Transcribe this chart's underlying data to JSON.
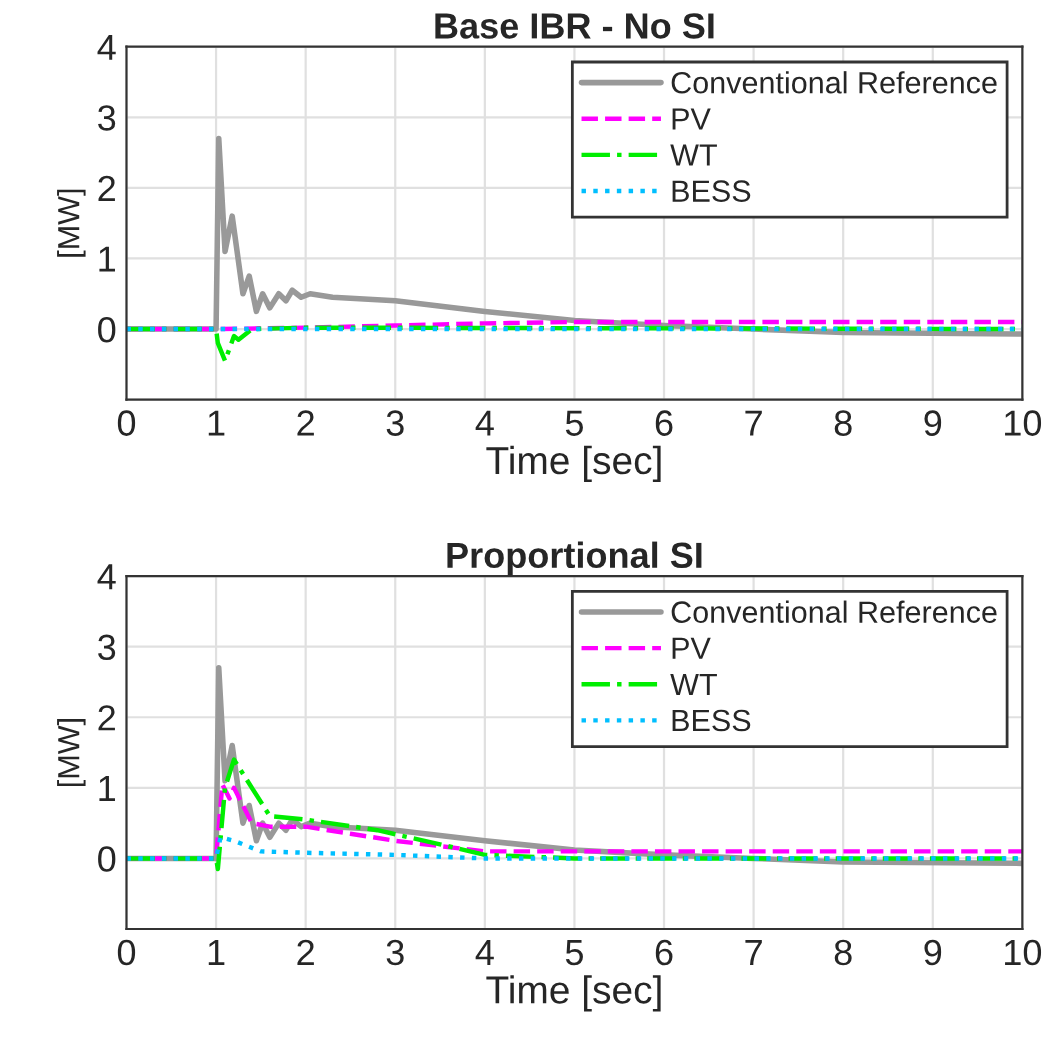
{
  "chart_data": [
    {
      "type": "line",
      "title": "Base IBR - No SI",
      "xlabel": "Time [sec]",
      "ylabel": "[MW]",
      "xlim": [
        0,
        10
      ],
      "xticks": [
        0,
        1,
        2,
        3,
        4,
        5,
        6,
        7,
        8,
        9,
        10
      ],
      "ylim": [
        -1,
        4
      ],
      "yticks": [
        {
          "value": -1,
          "label": null
        },
        0,
        1,
        2,
        3,
        4
      ],
      "grid": true,
      "legend": "top right",
      "series": [
        {
          "name": "Conventional Reference",
          "color": "#999999",
          "line_style": "solid",
          "x": [
            0,
            1,
            1.03,
            1.1,
            1.18,
            1.3,
            1.37,
            1.45,
            1.52,
            1.6,
            1.7,
            1.78,
            1.85,
            1.95,
            2.05,
            2.3,
            3,
            4,
            5,
            6,
            7,
            8,
            10
          ],
          "values": [
            0,
            0,
            2.7,
            1.1,
            1.6,
            0.5,
            0.75,
            0.25,
            0.5,
            0.3,
            0.5,
            0.4,
            0.55,
            0.45,
            0.5,
            0.45,
            0.4,
            0.25,
            0.12,
            0.05,
            0,
            -0.05,
            -0.07
          ]
        },
        {
          "name": "PV",
          "color": "#ff00ff",
          "line_style": "dashed",
          "x": [
            0,
            1,
            2,
            3,
            4,
            5,
            10
          ],
          "values": [
            0,
            0,
            0.02,
            0.05,
            0.08,
            0.1,
            0.1
          ]
        },
        {
          "name": "WT",
          "color": "#00ee00",
          "line_style": "dashdot",
          "x": [
            0,
            1,
            1.02,
            1.1,
            1.2,
            1.25,
            1.4,
            2,
            10
          ],
          "values": [
            0,
            0,
            -0.2,
            -0.45,
            -0.1,
            -0.15,
            0,
            0.02,
            0
          ]
        },
        {
          "name": "BESS",
          "color": "#00bfff",
          "line_style": "dotted",
          "x": [
            0,
            10
          ],
          "values": [
            0,
            0
          ]
        }
      ]
    },
    {
      "type": "line",
      "title": "Proportional SI",
      "xlabel": "Time [sec]",
      "ylabel": "[MW]",
      "xlim": [
        0,
        10
      ],
      "xticks": [
        0,
        1,
        2,
        3,
        4,
        5,
        6,
        7,
        8,
        9,
        10
      ],
      "ylim": [
        -1,
        4
      ],
      "yticks": [
        {
          "value": -1,
          "label": null
        },
        0,
        1,
        2,
        3,
        4
      ],
      "grid": true,
      "legend": "top right",
      "series": [
        {
          "name": "Conventional Reference",
          "color": "#999999",
          "line_style": "solid",
          "x": [
            0,
            1,
            1.03,
            1.1,
            1.18,
            1.3,
            1.37,
            1.45,
            1.52,
            1.6,
            1.7,
            1.78,
            1.85,
            1.95,
            2.05,
            2.3,
            3,
            4,
            5,
            6,
            7,
            8,
            10
          ],
          "values": [
            0,
            0,
            2.7,
            1.1,
            1.6,
            0.5,
            0.75,
            0.25,
            0.5,
            0.3,
            0.5,
            0.4,
            0.55,
            0.45,
            0.5,
            0.45,
            0.4,
            0.25,
            0.12,
            0.05,
            0,
            -0.05,
            -0.07
          ]
        },
        {
          "name": "PV",
          "color": "#ff00ff",
          "line_style": "dashed",
          "x": [
            0,
            1,
            1.07,
            1.15,
            1.2,
            1.4,
            1.6,
            2,
            2.5,
            3,
            4,
            10
          ],
          "values": [
            0,
            0,
            1.05,
            0.85,
            1.0,
            0.5,
            0.45,
            0.45,
            0.35,
            0.25,
            0.1,
            0.1
          ]
        },
        {
          "name": "WT",
          "color": "#00ee00",
          "line_style": "dashdot",
          "x": [
            0,
            1,
            1.02,
            1.1,
            1.2,
            1.35,
            1.6,
            2,
            2.8,
            3.5,
            4,
            5,
            10
          ],
          "values": [
            0,
            0,
            -0.15,
            1.0,
            1.4,
            1.1,
            0.6,
            0.55,
            0.4,
            0.2,
            0.05,
            0,
            0
          ]
        },
        {
          "name": "BESS",
          "color": "#00bfff",
          "line_style": "dotted",
          "x": [
            0,
            1,
            1.05,
            1.2,
            1.5,
            2,
            3,
            4,
            10
          ],
          "values": [
            0,
            0,
            0.3,
            0.25,
            0.1,
            0.08,
            0.05,
            0,
            0
          ]
        }
      ]
    }
  ]
}
